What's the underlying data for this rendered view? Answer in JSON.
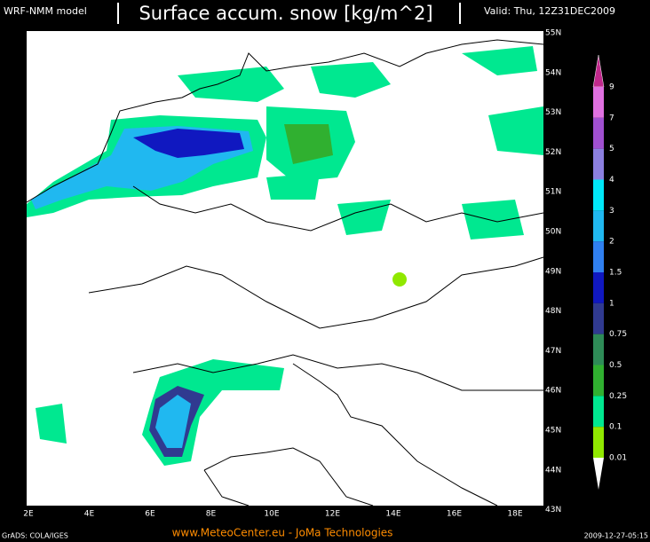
{
  "header": {
    "model": "WRF-NMM model",
    "title": "Surface accum. snow [kg/m^2]",
    "valid": "Valid: Thu, 12Z31DEC2009"
  },
  "map": {
    "lat_labels": [
      "55N",
      "54N",
      "53N",
      "52N",
      "51N",
      "50N",
      "49N",
      "48N",
      "47N",
      "46N",
      "45N",
      "44N",
      "43N"
    ],
    "lon_labels": [
      "2E",
      "4E",
      "6E",
      "8E",
      "10E",
      "12E",
      "14E",
      "16E",
      "18E"
    ]
  },
  "legend": {
    "labels": [
      "9",
      "7",
      "5",
      "4",
      "3",
      "2",
      "1.5",
      "1",
      "0.75",
      "0.5",
      "0.25",
      "0.1",
      "0.01"
    ],
    "colors": [
      "#c0288c",
      "#e070e0",
      "#a050d0",
      "#8c80e0",
      "#00e8f8",
      "#20b8f0",
      "#3080f0",
      "#1018c0",
      "#303a90",
      "#2e8b57",
      "#30b030",
      "#00e890",
      "#90e800",
      "#ffffff"
    ]
  },
  "footer": {
    "software": "GrADS: COLA/IGES",
    "credit": "www.MeteoCenter.eu  -  JoMa Technologies",
    "timestamp": "2009-12-27-05:15"
  }
}
